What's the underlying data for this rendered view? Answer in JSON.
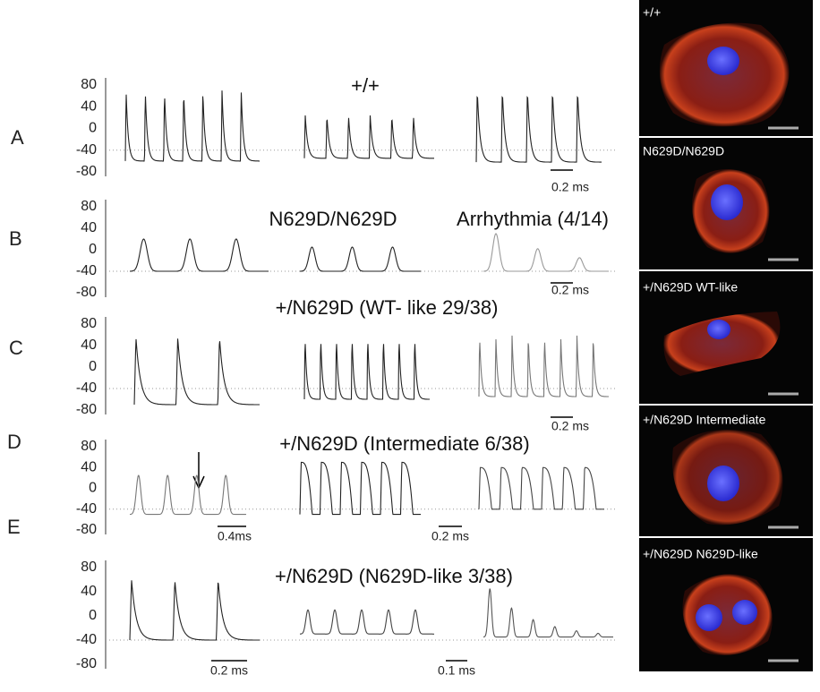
{
  "panels": [
    {
      "label": "A",
      "yticks": [
        "80",
        "40",
        "0",
        "-40",
        "-80"
      ],
      "titles": [
        "+/+"
      ],
      "scale_labels": [
        "0.2 ms"
      ]
    },
    {
      "label": "B",
      "yticks": [
        "80",
        "40",
        "0",
        "-40",
        "-80"
      ],
      "titles": [
        "N629D/N629D",
        "Arrhythmia  (4/14)"
      ],
      "scale_labels": [
        "0.2 ms"
      ]
    },
    {
      "label": "C",
      "yticks": [
        "80",
        "40",
        "0",
        "-40",
        "-80"
      ],
      "titles": [
        "+/N629D (WT- like  29/38)"
      ],
      "scale_labels": [
        "0.2 ms"
      ]
    },
    {
      "label": "D",
      "yticks": [
        "80",
        "40",
        "0",
        "-40",
        "-80"
      ],
      "titles": [
        "+/N629D (Intermediate  6/38)"
      ],
      "scale_labels": [
        "0.4ms",
        "0.2 ms"
      ]
    },
    {
      "label": "E",
      "yticks": [
        "80",
        "40",
        "0",
        "-40",
        "-80"
      ],
      "titles": [
        "+/N629D (N629D-like  3/38)"
      ],
      "scale_labels": [
        "0.2 ms",
        "0.1 ms"
      ]
    }
  ],
  "images": [
    {
      "label": "+/+"
    },
    {
      "label": "N629D/N629D"
    },
    {
      "label": "+/N629D WT-like"
    },
    {
      "label": "+/N629D Intermediate"
    },
    {
      "label": "+/N629D N629D-like"
    }
  ]
}
